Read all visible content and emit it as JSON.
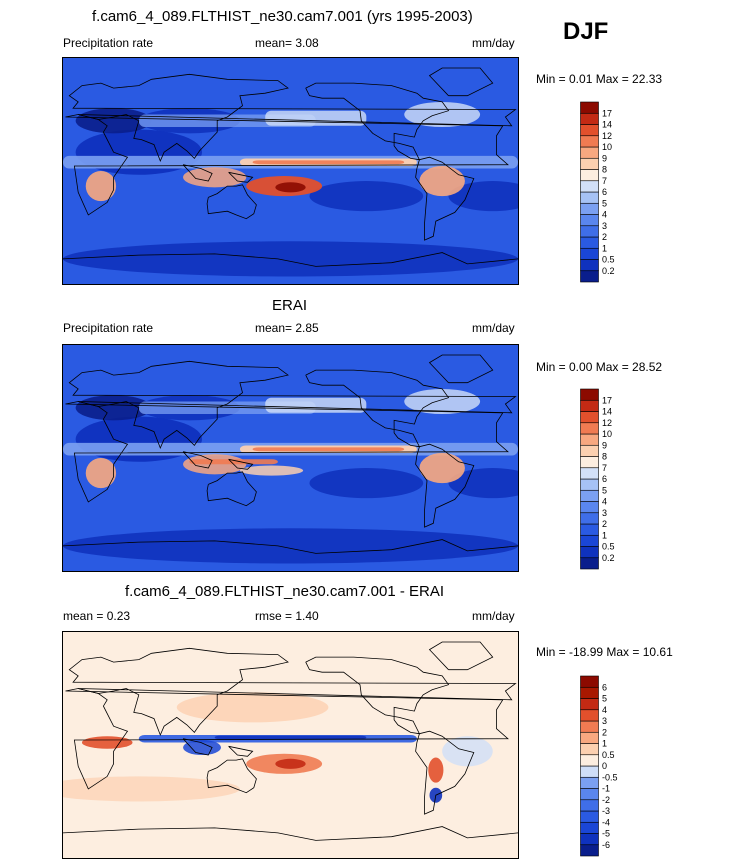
{
  "season": "DJF",
  "panels": [
    {
      "title": "f.cam6_4_089.FLTHIST_ne30.cam7.001 (yrs 1995-2003)",
      "left_label": "Precipitation rate",
      "center_label": "mean=   3.08",
      "right_label": "mm/day",
      "minmax": "Min =   0.01 Max =   22.33",
      "field": "model"
    },
    {
      "title": "ERAI",
      "left_label": "Precipitation rate",
      "center_label": "mean=   2.85",
      "right_label": "mm/day",
      "minmax": "Min =   0.00 Max =   28.52",
      "field": "obs"
    },
    {
      "title": "f.cam6_4_089.FLTHIST_ne30.cam7.001 - ERAI",
      "left_label": "mean =   0.23",
      "center_label": "rmse =   1.40",
      "right_label": "mm/day",
      "minmax": "Min = -18.99 Max =   10.61",
      "field": "diff"
    }
  ],
  "chart_data": [
    {
      "type": "heatmap",
      "title": "f.cam6_4_089.FLTHIST_ne30.cam7.001 (yrs 1995-2003)",
      "variable": "Precipitation rate",
      "units": "mm/day",
      "mean": 3.08,
      "min": 0.01,
      "max": 22.33,
      "colorbar_levels": [
        "0.2",
        "0.5",
        "1",
        "2",
        "3",
        "4",
        "5",
        "6",
        "7",
        "8",
        "9",
        "10",
        "12",
        "14",
        "17"
      ],
      "colorbar_colors": [
        "#0a1e8c",
        "#0f32be",
        "#1a46d6",
        "#2a5ae2",
        "#3f6ee8",
        "#5a86ee",
        "#7ba0f2",
        "#a6c2f5",
        "#d2e0f8",
        "#fdeee0",
        "#fcd0b0",
        "#f8a880",
        "#f07b52",
        "#e2502c",
        "#c32a14",
        "#8c0a00"
      ],
      "xlim": [
        0,
        360
      ],
      "ylim": [
        -90,
        90
      ]
    },
    {
      "type": "heatmap",
      "title": "ERAI",
      "variable": "Precipitation rate",
      "units": "mm/day",
      "mean": 2.85,
      "min": 0.0,
      "max": 28.52,
      "colorbar_levels": [
        "0.2",
        "0.5",
        "1",
        "2",
        "3",
        "4",
        "5",
        "6",
        "7",
        "8",
        "9",
        "10",
        "12",
        "14",
        "17"
      ],
      "colorbar_colors": [
        "#0a1e8c",
        "#0f32be",
        "#1a46d6",
        "#2a5ae2",
        "#3f6ee8",
        "#5a86ee",
        "#7ba0f2",
        "#a6c2f5",
        "#d2e0f8",
        "#fdeee0",
        "#fcd0b0",
        "#f8a880",
        "#f07b52",
        "#e2502c",
        "#c32a14",
        "#8c0a00"
      ],
      "xlim": [
        0,
        360
      ],
      "ylim": [
        -90,
        90
      ]
    },
    {
      "type": "heatmap",
      "title": "f.cam6_4_089.FLTHIST_ne30.cam7.001 - ERAI",
      "units": "mm/day",
      "mean": 0.23,
      "rmse": 1.4,
      "min": -18.99,
      "max": 10.61,
      "colorbar_levels": [
        "-6",
        "-5",
        "-4",
        "-3",
        "-2",
        "-1",
        "-0.5",
        "0",
        "0.5",
        "1",
        "2",
        "3",
        "4",
        "5",
        "6"
      ],
      "colorbar_colors": [
        "#0a1e8c",
        "#0f32be",
        "#1a46d6",
        "#2a5ae2",
        "#3f6ee8",
        "#5a86ee",
        "#7ba0f2",
        "#cfdef8",
        "#fdeee0",
        "#fcd0b0",
        "#f8a880",
        "#f07b52",
        "#e2502c",
        "#c32a14",
        "#a81800",
        "#8c0a00"
      ],
      "xlim": [
        0,
        360
      ],
      "ylim": [
        -90,
        90
      ]
    }
  ]
}
